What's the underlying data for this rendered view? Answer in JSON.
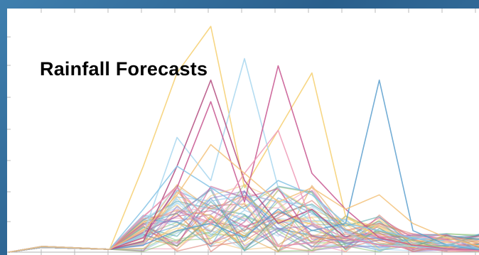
{
  "chart_data": {
    "type": "line",
    "title": "Rainfall Forecasts",
    "xlabel": "",
    "ylabel": "",
    "grid": false,
    "ylim": [
      0,
      330
    ],
    "x": [
      0,
      1,
      2,
      3,
      4,
      5,
      6,
      7,
      8,
      9,
      10,
      11,
      12,
      13,
      14
    ],
    "highlight_series": [
      {
        "color": "#f6cf6e",
        "values": [
          0,
          8,
          6,
          4,
          120,
          250,
          315,
          90,
          170,
          250,
          50,
          20,
          10,
          5,
          3
        ]
      },
      {
        "color": "#a7d6ee",
        "values": [
          0,
          8,
          6,
          4,
          25,
          160,
          100,
          270,
          90,
          40,
          20,
          10,
          8,
          5,
          3
        ]
      },
      {
        "color": "#c7538e",
        "values": [
          0,
          8,
          6,
          4,
          20,
          90,
          210,
          70,
          260,
          110,
          60,
          20,
          10,
          5,
          3
        ]
      },
      {
        "color": "#5a9fce",
        "values": [
          0,
          8,
          6,
          4,
          10,
          30,
          40,
          20,
          60,
          30,
          40,
          240,
          30,
          10,
          3
        ]
      },
      {
        "color": "#b34a7e",
        "values": [
          0,
          8,
          6,
          4,
          15,
          120,
          240,
          100,
          40,
          60,
          20,
          10,
          5,
          3,
          2
        ]
      },
      {
        "color": "#ef9ab6",
        "values": [
          0,
          8,
          6,
          4,
          50,
          90,
          40,
          110,
          170,
          40,
          20,
          10,
          5,
          3,
          2
        ]
      },
      {
        "color": "#85c3e5",
        "values": [
          0,
          8,
          6,
          4,
          60,
          120,
          90,
          60,
          100,
          80,
          40,
          30,
          20,
          10,
          5
        ]
      },
      {
        "color": "#f3c27a",
        "values": [
          0,
          8,
          6,
          4,
          30,
          80,
          150,
          110,
          70,
          90,
          60,
          80,
          40,
          20,
          8
        ]
      }
    ],
    "series_palette": [
      "#f6cf6e",
      "#a7d6ee",
      "#c7538e",
      "#5a9fce",
      "#e0a24a",
      "#ef9ab6",
      "#8cc37a",
      "#4aa3a0",
      "#d8736a",
      "#9b7bc4",
      "#f3c27a",
      "#85c3e5"
    ]
  }
}
